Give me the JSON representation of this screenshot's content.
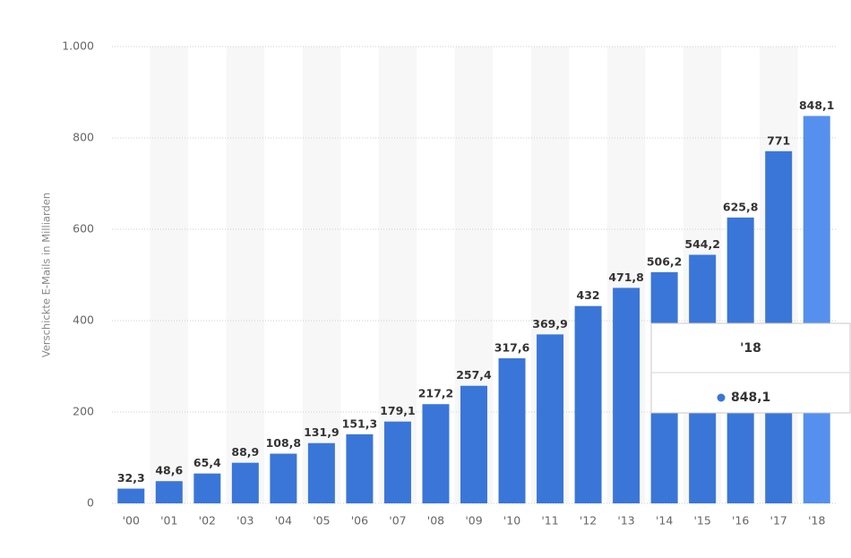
{
  "chart_data": {
    "type": "bar",
    "y_label": "Verschickte E-Mails in Milliarden",
    "categories": [
      "'00",
      "'01",
      "'02",
      "'03",
      "'04",
      "'05",
      "'06",
      "'07",
      "'08",
      "'09",
      "'10",
      "'11",
      "'12",
      "'13",
      "'14",
      "'15",
      "'16",
      "'17",
      "'18"
    ],
    "values": [
      32.3,
      48.6,
      65.4,
      88.9,
      108.8,
      131.9,
      151.3,
      179.1,
      217.2,
      257.4,
      317.6,
      369.9,
      432,
      471.8,
      506.2,
      544.2,
      625.8,
      771,
      848.1
    ],
    "value_labels": [
      "32,3",
      "48,6",
      "65,4",
      "88,9",
      "108,8",
      "131,9",
      "151,3",
      "179,1",
      "217,2",
      "257,4",
      "317,6",
      "369,9",
      "432",
      "471,8",
      "506,2",
      "544,2",
      "625,8",
      "771",
      "848,1"
    ],
    "color": "#3a76d8",
    "highlight_color": "#5590ee",
    "active_category": "'18",
    "ylim": [
      0,
      1000
    ],
    "yticks": [
      0,
      200,
      400,
      600,
      800,
      {
        "value": 1000,
        "label": "1.000"
      }
    ],
    "grid": true
  }
}
